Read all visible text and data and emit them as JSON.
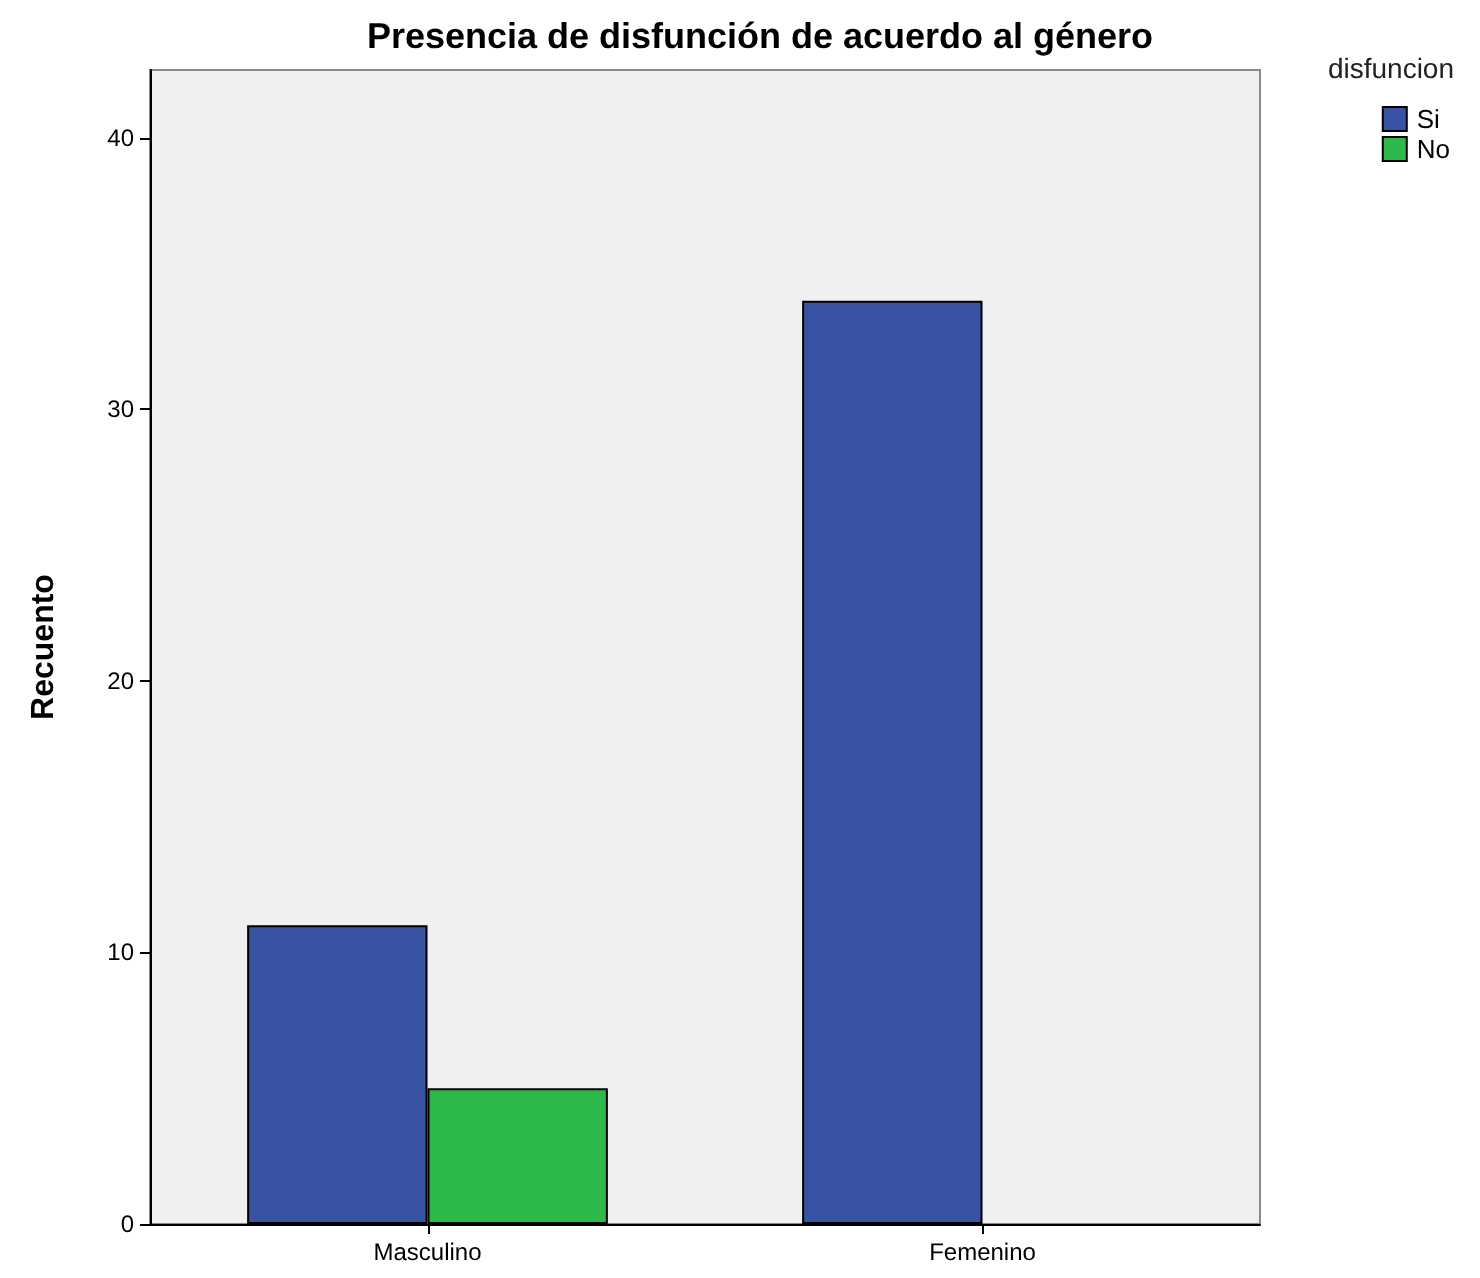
{
  "chart_data": {
    "type": "bar",
    "title": "Presencia de disfunción de acuerdo al género",
    "ylabel": "Recuento",
    "legend_title": "disfuncion",
    "categories": [
      "Masculino",
      "Femenino"
    ],
    "series": [
      {
        "name": "Si",
        "color": "#3953a4",
        "values": [
          11,
          34
        ]
      },
      {
        "name": "No",
        "color": "#2db84a",
        "values": [
          5,
          null
        ]
      }
    ],
    "ylim": [
      0,
      42.5
    ],
    "yticks": [
      0,
      10,
      20,
      30,
      40
    ],
    "grid": false,
    "legend": "right"
  }
}
